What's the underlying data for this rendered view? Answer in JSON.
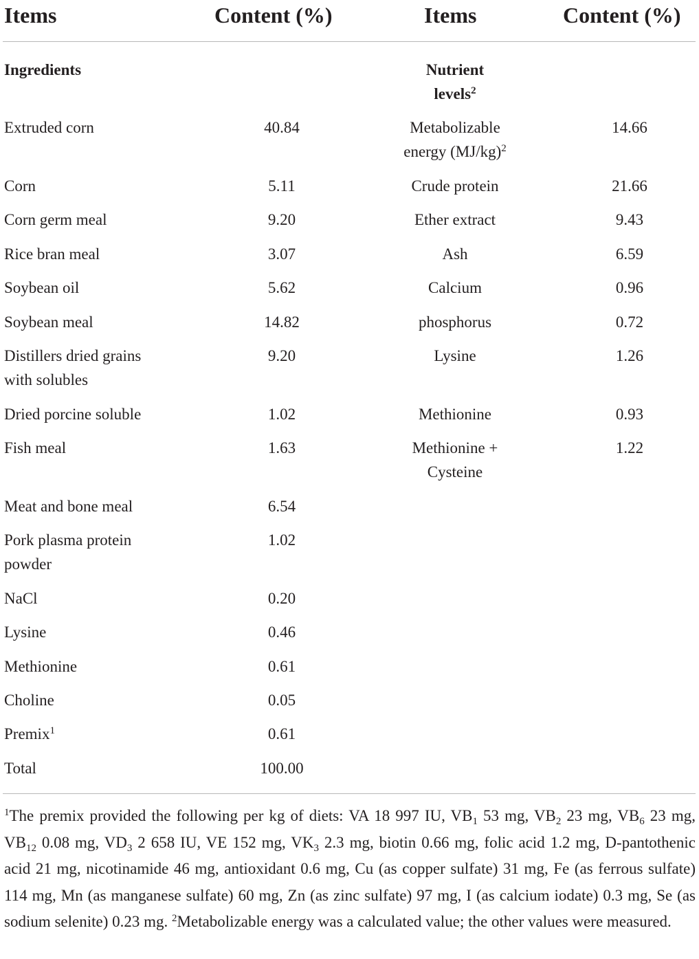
{
  "header": {
    "items_left": "Items",
    "content_left": "Content (%)",
    "items_right": "Items",
    "content_right": "Content (%)"
  },
  "sections": {
    "ingredients": "Ingredients",
    "nutrient_line1": "Nutrient",
    "nutrient_line2": "levels",
    "nutrient_sup": "2"
  },
  "ingredients": [
    {
      "name": "Extruded corn",
      "value": "40.84"
    },
    {
      "name": "Corn",
      "value": "5.11"
    },
    {
      "name": "Corn germ meal",
      "value": "9.20"
    },
    {
      "name": "Rice bran meal",
      "value": "3.07"
    },
    {
      "name": "Soybean oil",
      "value": "5.62"
    },
    {
      "name": "Soybean meal",
      "value": "14.82"
    },
    {
      "name_line1": "Distillers dried grains",
      "name_line2": "with solubles",
      "value": "9.20"
    },
    {
      "name": "Dried porcine soluble",
      "value": "1.02"
    },
    {
      "name": "Fish meal",
      "value": "1.63"
    },
    {
      "name": "Meat and bone meal",
      "value": "6.54"
    },
    {
      "name_line1": "Pork plasma protein",
      "name_line2": "powder",
      "value": "1.02"
    },
    {
      "name": "NaCl",
      "value": "0.20"
    },
    {
      "name": "Lysine",
      "value": "0.46"
    },
    {
      "name": "Methionine",
      "value": "0.61"
    },
    {
      "name": "Choline",
      "value": "0.05"
    },
    {
      "name": "Premix",
      "sup": "1",
      "value": "0.61"
    },
    {
      "name": "Total",
      "value": "100.00"
    }
  ],
  "nutrients": [
    {
      "name_line1": "Metabolizable",
      "name_line2": "energy (MJ/kg)",
      "sup": "2",
      "value": "14.66"
    },
    {
      "name": "Crude protein",
      "value": "21.66"
    },
    {
      "name": "Ether extract",
      "value": "9.43"
    },
    {
      "name": "Ash",
      "value": "6.59"
    },
    {
      "name": "Calcium",
      "value": "0.96"
    },
    {
      "name": "phosphorus",
      "value": "0.72"
    },
    {
      "name": "Lysine",
      "value": "1.26"
    },
    {
      "name": "Methionine",
      "value": "0.93"
    },
    {
      "name_line1": "Methionine +",
      "name_line2": "Cysteine",
      "value": "1.22"
    }
  ],
  "footnote": {
    "mark1": "1",
    "t1": "The premix provided the following per kg of diets: VA 18 997 IU, VB",
    "s1": "1",
    "t2": " 53 mg, VB",
    "s2": "2",
    "t3": " 23 mg, VB",
    "s3": "6",
    "t4": " 23 mg, VB",
    "s4": "12",
    "t5": " 0.08 mg, VD",
    "s5": "3",
    "t6": " 2 658 IU, VE 152 mg, VK",
    "s6": "3",
    "t7": " 2.3 mg, biotin 0.66 mg, folic acid 1.2 mg, D-pantothenic acid 21 mg, nicotinamide 46 mg, antioxidant 0.6 mg, Cu (as copper sulfate) 31 mg, Fe (as ferrous sulfate) 114 mg, Mn (as manganese sulfate) 60 mg, Zn (as zinc sulfate) 97 mg, I (as calcium iodate) 0.3 mg, Se (as sodium selenite) 0.23 mg. ",
    "mark2": "2",
    "t8": "Metabolizable energy was a calculated value; the other values were measured."
  }
}
